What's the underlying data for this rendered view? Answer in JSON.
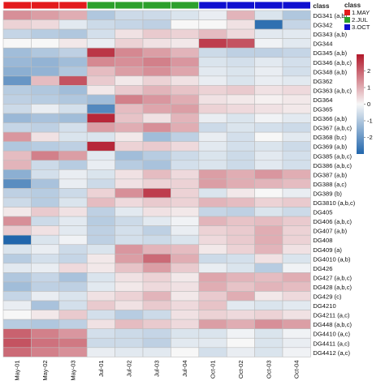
{
  "chart_data": {
    "type": "heatmap",
    "title": "",
    "columns": [
      "May-01",
      "May-02",
      "May-03",
      "Jul-01",
      "Jul-02",
      "Jul-03",
      "Jul-04",
      "Oct-01",
      "Oct-02",
      "Oct-03",
      "Oct-04"
    ],
    "column_classes": [
      "1.MAY",
      "1.MAY",
      "1.MAY",
      "2.JUL",
      "2.JUL",
      "2.JUL",
      "2.JUL",
      "3.OCT",
      "3.OCT",
      "3.OCT",
      "3.OCT"
    ],
    "class_annotation_label": "class",
    "legend": {
      "title": "class",
      "placement": "top-right",
      "items": [
        {
          "name": "1.MAY",
          "color": "#e31a1c"
        },
        {
          "name": "2.JUL",
          "color": "#2ca02c"
        },
        {
          "name": "3.OCT",
          "color": "#1010d0"
        }
      ]
    },
    "color_scale": {
      "min": -3,
      "max": 3,
      "ticks": [
        2,
        1,
        0,
        -1,
        -2
      ],
      "stops": [
        "#2166ac",
        "#f7f7f7",
        "#b2182b"
      ],
      "placement": "right"
    },
    "rows": [
      {
        "label": "DG341 (a,b)",
        "values": [
          1.4,
          1.2,
          1.0,
          -1.0,
          -0.6,
          -0.6,
          -0.4,
          -0.2,
          0.9,
          -0.4,
          -1.0
        ]
      },
      {
        "label": "DG342",
        "values": [
          0.5,
          0.4,
          -0.3,
          -0.6,
          -0.7,
          -0.8,
          0.0,
          0.0,
          0.3,
          -2.8,
          -0.7
        ]
      },
      {
        "label": "DG343 (a,b)",
        "values": [
          -0.7,
          -0.9,
          -1.0,
          -0.5,
          0.3,
          0.6,
          0.5,
          0.8,
          0.4,
          -0.3,
          -0.3
        ]
      },
      {
        "label": "DG344",
        "values": [
          0.0,
          0.0,
          0.2,
          -0.2,
          0.5,
          0.3,
          0.2,
          2.5,
          2.2,
          -0.1,
          -0.3
        ]
      },
      {
        "label": "DG345 (a,b)",
        "values": [
          -1.2,
          -1.0,
          -0.8,
          2.6,
          1.5,
          1.2,
          0.9,
          -0.6,
          -0.8,
          -0.8,
          -0.7
        ]
      },
      {
        "label": "DG346 (a,b,c)",
        "values": [
          -1.3,
          -1.4,
          -1.2,
          1.5,
          1.4,
          1.6,
          1.3,
          -0.4,
          -0.5,
          -0.3,
          -0.5
        ]
      },
      {
        "label": "DG348 (a,b)",
        "values": [
          -1.5,
          -1.4,
          -1.0,
          0.8,
          1.2,
          1.4,
          1.1,
          -0.3,
          -0.4,
          -0.2,
          -0.5
        ]
      },
      {
        "label": "DG362",
        "values": [
          -2.0,
          0.8,
          2.2,
          0.6,
          0.2,
          0.5,
          0.3,
          -0.2,
          -0.4,
          -0.2,
          -0.3
        ]
      },
      {
        "label": "DG363 (a,b,c)",
        "values": [
          -0.9,
          -1.0,
          -1.2,
          0.2,
          0.6,
          0.9,
          0.7,
          0.5,
          0.6,
          0.3,
          0.4
        ]
      },
      {
        "label": "DG364",
        "values": [
          -0.8,
          -0.9,
          -1.0,
          -1.2,
          1.6,
          1.3,
          1.0,
          0.3,
          0.2,
          0.1,
          0.2
        ]
      },
      {
        "label": "DG365",
        "values": [
          -0.6,
          -0.2,
          -0.5,
          -2.3,
          0.8,
          1.1,
          1.2,
          0.5,
          0.4,
          0.3,
          0.2
        ]
      },
      {
        "label": "DG366 (a,b)",
        "values": [
          -1.3,
          -1.1,
          -1.2,
          2.8,
          0.7,
          0.3,
          0.9,
          -0.2,
          -0.4,
          -0.1,
          -0.3
        ]
      },
      {
        "label": "DG367 (a,b,c)",
        "values": [
          -0.7,
          -0.8,
          -0.5,
          1.2,
          1.0,
          1.4,
          1.0,
          -0.6,
          -0.4,
          -0.5,
          -0.6
        ]
      },
      {
        "label": "DG368 (b,c)",
        "values": [
          1.3,
          0.3,
          -0.4,
          -0.4,
          0.2,
          -1.2,
          -0.8,
          -0.2,
          -0.5,
          0.0,
          -0.3
        ]
      },
      {
        "label": "DG369 (a,b)",
        "values": [
          -1.0,
          -0.9,
          -0.8,
          2.8,
          0.5,
          0.6,
          0.4,
          -0.3,
          -0.5,
          -0.4,
          -0.6
        ]
      },
      {
        "label": "DG385 (a,b,c)",
        "values": [
          0.8,
          1.6,
          1.2,
          -0.3,
          -1.2,
          -0.9,
          -0.6,
          -0.4,
          -0.6,
          -0.3,
          -0.5
        ]
      },
      {
        "label": "DG386 (a,b,c)",
        "values": [
          0.9,
          -0.6,
          -0.9,
          -0.2,
          -0.9,
          -1.1,
          -0.5,
          -0.4,
          -0.6,
          -0.3,
          -0.5
        ]
      },
      {
        "label": "DG387 (a,b)",
        "values": [
          -1.5,
          -0.5,
          -0.2,
          -0.4,
          0.3,
          0.8,
          0.4,
          1.2,
          1.0,
          1.3,
          1.0
        ]
      },
      {
        "label": "DG388 (a,c)",
        "values": [
          -2.2,
          -1.1,
          -0.2,
          -0.6,
          0.3,
          0.5,
          0.5,
          1.2,
          1.0,
          0.9,
          0.8
        ]
      },
      {
        "label": "DG389 (b)",
        "values": [
          -0.8,
          -0.9,
          -0.6,
          0.5,
          1.4,
          2.5,
          0.5,
          -0.4,
          0.2,
          0.0,
          -0.2
        ]
      },
      {
        "label": "DG3810 (a,b,c)",
        "values": [
          -0.6,
          -0.9,
          -0.4,
          0.8,
          0.4,
          0.6,
          0.5,
          0.9,
          0.8,
          0.5,
          0.6
        ]
      },
      {
        "label": "DG405",
        "values": [
          0.2,
          0.6,
          0.3,
          -0.8,
          -0.3,
          0.3,
          0.2,
          -0.7,
          -0.8,
          -0.4,
          -0.6
        ]
      },
      {
        "label": "DG406 (a,b,c)",
        "values": [
          1.4,
          -0.6,
          -0.3,
          -0.9,
          -0.6,
          -0.3,
          -0.1,
          0.9,
          0.7,
          0.8,
          0.6
        ]
      },
      {
        "label": "DG407 (a,b)",
        "values": [
          0.6,
          0.3,
          -0.3,
          -0.8,
          -0.5,
          -0.8,
          -0.2,
          0.5,
          0.6,
          1.0,
          0.5
        ]
      },
      {
        "label": "DG408",
        "values": [
          -3.0,
          -0.4,
          -0.1,
          -0.8,
          -0.5,
          -0.6,
          -0.4,
          0.4,
          0.6,
          1.0,
          0.5
        ]
      },
      {
        "label": "DG409 (a)",
        "values": [
          -0.4,
          -0.2,
          -0.6,
          -0.4,
          1.3,
          0.9,
          0.8,
          0.2,
          0.5,
          0.9,
          0.3
        ]
      },
      {
        "label": "DG4010 (a,b)",
        "values": [
          -0.9,
          -0.5,
          -0.7,
          0.2,
          1.2,
          1.9,
          1.0,
          -0.6,
          -0.5,
          0.3,
          -0.4
        ]
      },
      {
        "label": "DG426",
        "values": [
          -0.3,
          -0.2,
          0.4,
          0.2,
          0.7,
          1.2,
          0.6,
          -0.2,
          -0.4,
          -0.9,
          -0.1
        ]
      },
      {
        "label": "DG427 (a,b,c)",
        "values": [
          -1.0,
          -0.7,
          -1.1,
          -0.4,
          0.3,
          0.5,
          0.2,
          1.1,
          0.9,
          0.8,
          1.0
        ]
      },
      {
        "label": "DG428 (a,b,c)",
        "values": [
          -1.2,
          -0.8,
          -0.8,
          -0.3,
          0.2,
          0.4,
          0.3,
          1.0,
          0.7,
          0.9,
          0.8
        ]
      },
      {
        "label": "DG429 (c)",
        "values": [
          -0.7,
          -0.2,
          -0.4,
          0.3,
          0.5,
          0.9,
          0.2,
          0.6,
          1.0,
          0.2,
          0.4
        ]
      },
      {
        "label": "DG4210",
        "values": [
          -0.2,
          -1.1,
          -0.5,
          0.6,
          0.3,
          0.6,
          0.4,
          0.7,
          -0.3,
          -0.4,
          -0.3
        ]
      },
      {
        "label": "DG4211 (a,c)",
        "values": [
          0.0,
          0.2,
          0.6,
          -0.5,
          -0.9,
          -0.6,
          0.3,
          0.5,
          0.4,
          0.5,
          0.3
        ]
      },
      {
        "label": "DG448 (a,b,c)",
        "values": [
          -0.9,
          -1.0,
          -0.8,
          0.3,
          0.8,
          0.6,
          0.4,
          1.2,
          1.0,
          1.4,
          1.2
        ]
      },
      {
        "label": "DG4410 (a,c)",
        "values": [
          2.0,
          1.6,
          1.3,
          -0.5,
          -0.6,
          -0.7,
          -0.4,
          -0.4,
          -0.1,
          -0.4,
          -0.1
        ]
      },
      {
        "label": "DG4411 (a,c)",
        "values": [
          2.2,
          1.8,
          1.7,
          -0.6,
          -0.6,
          -0.8,
          -0.3,
          -0.3,
          0.0,
          -0.4,
          -0.2
        ]
      },
      {
        "label": "DG4412 (a,c)",
        "values": [
          1.9,
          1.6,
          1.4,
          -0.2,
          -0.3,
          -0.3,
          0.0,
          -0.5,
          -0.2,
          -0.4,
          -0.1
        ]
      }
    ]
  }
}
